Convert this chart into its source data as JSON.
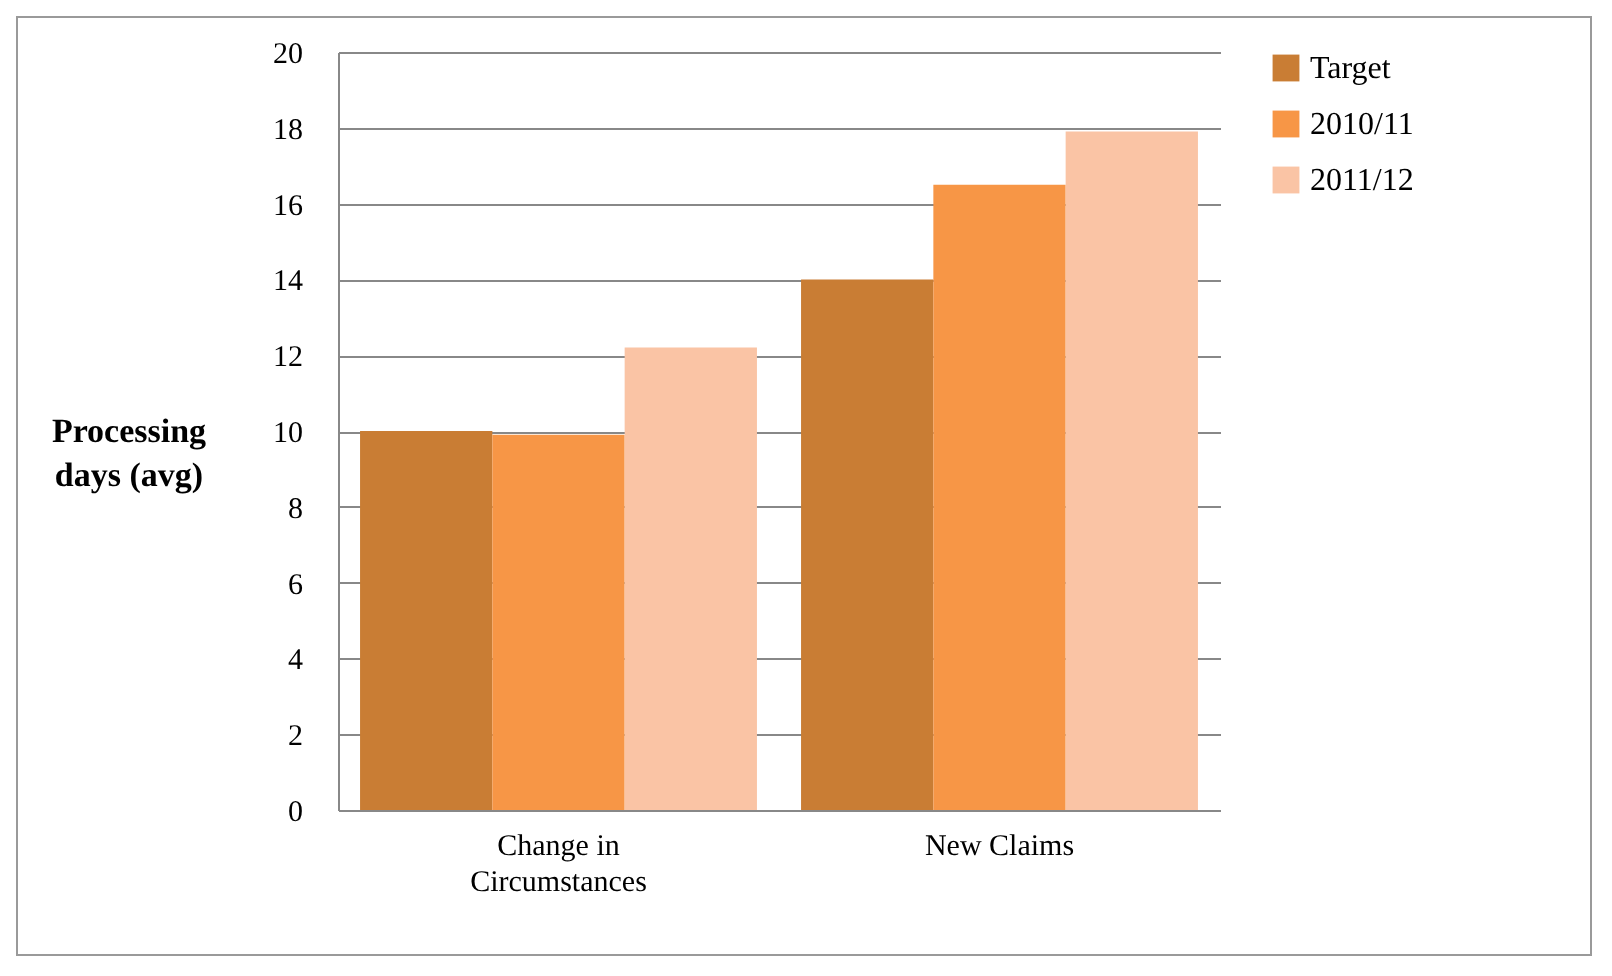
{
  "chart_data": {
    "type": "bar",
    "ylabel": "Processing days (avg)",
    "categories": [
      "Change in Circumstances",
      "New Claims"
    ],
    "series": [
      {
        "name": "Target",
        "color": "#c97d34",
        "values": [
          10,
          14
        ]
      },
      {
        "name": "2010/11",
        "color": "#f79646",
        "values": [
          9.9,
          16.5
        ]
      },
      {
        "name": "2011/12",
        "color": "#fac4a5",
        "values": [
          12.2,
          17.9
        ]
      }
    ],
    "ylim": [
      0,
      20
    ],
    "yticks": [
      0,
      2,
      4,
      6,
      8,
      10,
      12,
      14,
      16,
      18,
      20
    ],
    "grid": "y",
    "legend": "right"
  }
}
